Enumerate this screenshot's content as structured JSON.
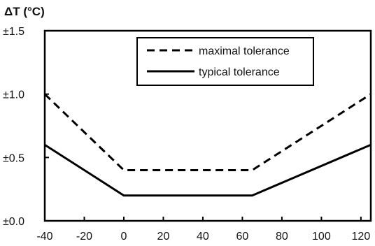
{
  "chart_data": {
    "type": "line",
    "ylabel": "ΔT (°C)",
    "xlabel": "",
    "xlim": [
      -40,
      125
    ],
    "ylim": [
      0.0,
      1.5
    ],
    "x_ticks": [
      {
        "value": -40,
        "label": "-40"
      },
      {
        "value": -20,
        "label": "-20"
      },
      {
        "value": 0,
        "label": "0"
      },
      {
        "value": 20,
        "label": "20"
      },
      {
        "value": 40,
        "label": "40"
      },
      {
        "value": 60,
        "label": "60"
      },
      {
        "value": 80,
        "label": "80"
      },
      {
        "value": 100,
        "label": "100"
      },
      {
        "value": 120,
        "label": "120"
      }
    ],
    "y_ticks": [
      {
        "value": 0.0,
        "label": "±0.0"
      },
      {
        "value": 0.5,
        "label": "±0.5"
      },
      {
        "value": 1.0,
        "label": "±1.0"
      },
      {
        "value": 1.5,
        "label": "±1.5"
      }
    ],
    "grid": false,
    "legend_position": "top-center",
    "series": [
      {
        "name": "maximal tolerance",
        "style": "dashed",
        "color": "#000000",
        "points": [
          [
            -40,
            1.0
          ],
          [
            0,
            0.4
          ],
          [
            65,
            0.4
          ],
          [
            125,
            1.0
          ]
        ]
      },
      {
        "name": "typical tolerance",
        "style": "solid",
        "color": "#000000",
        "points": [
          [
            -40,
            0.6
          ],
          [
            0,
            0.2
          ],
          [
            65,
            0.2
          ],
          [
            125,
            0.6
          ]
        ]
      }
    ]
  }
}
